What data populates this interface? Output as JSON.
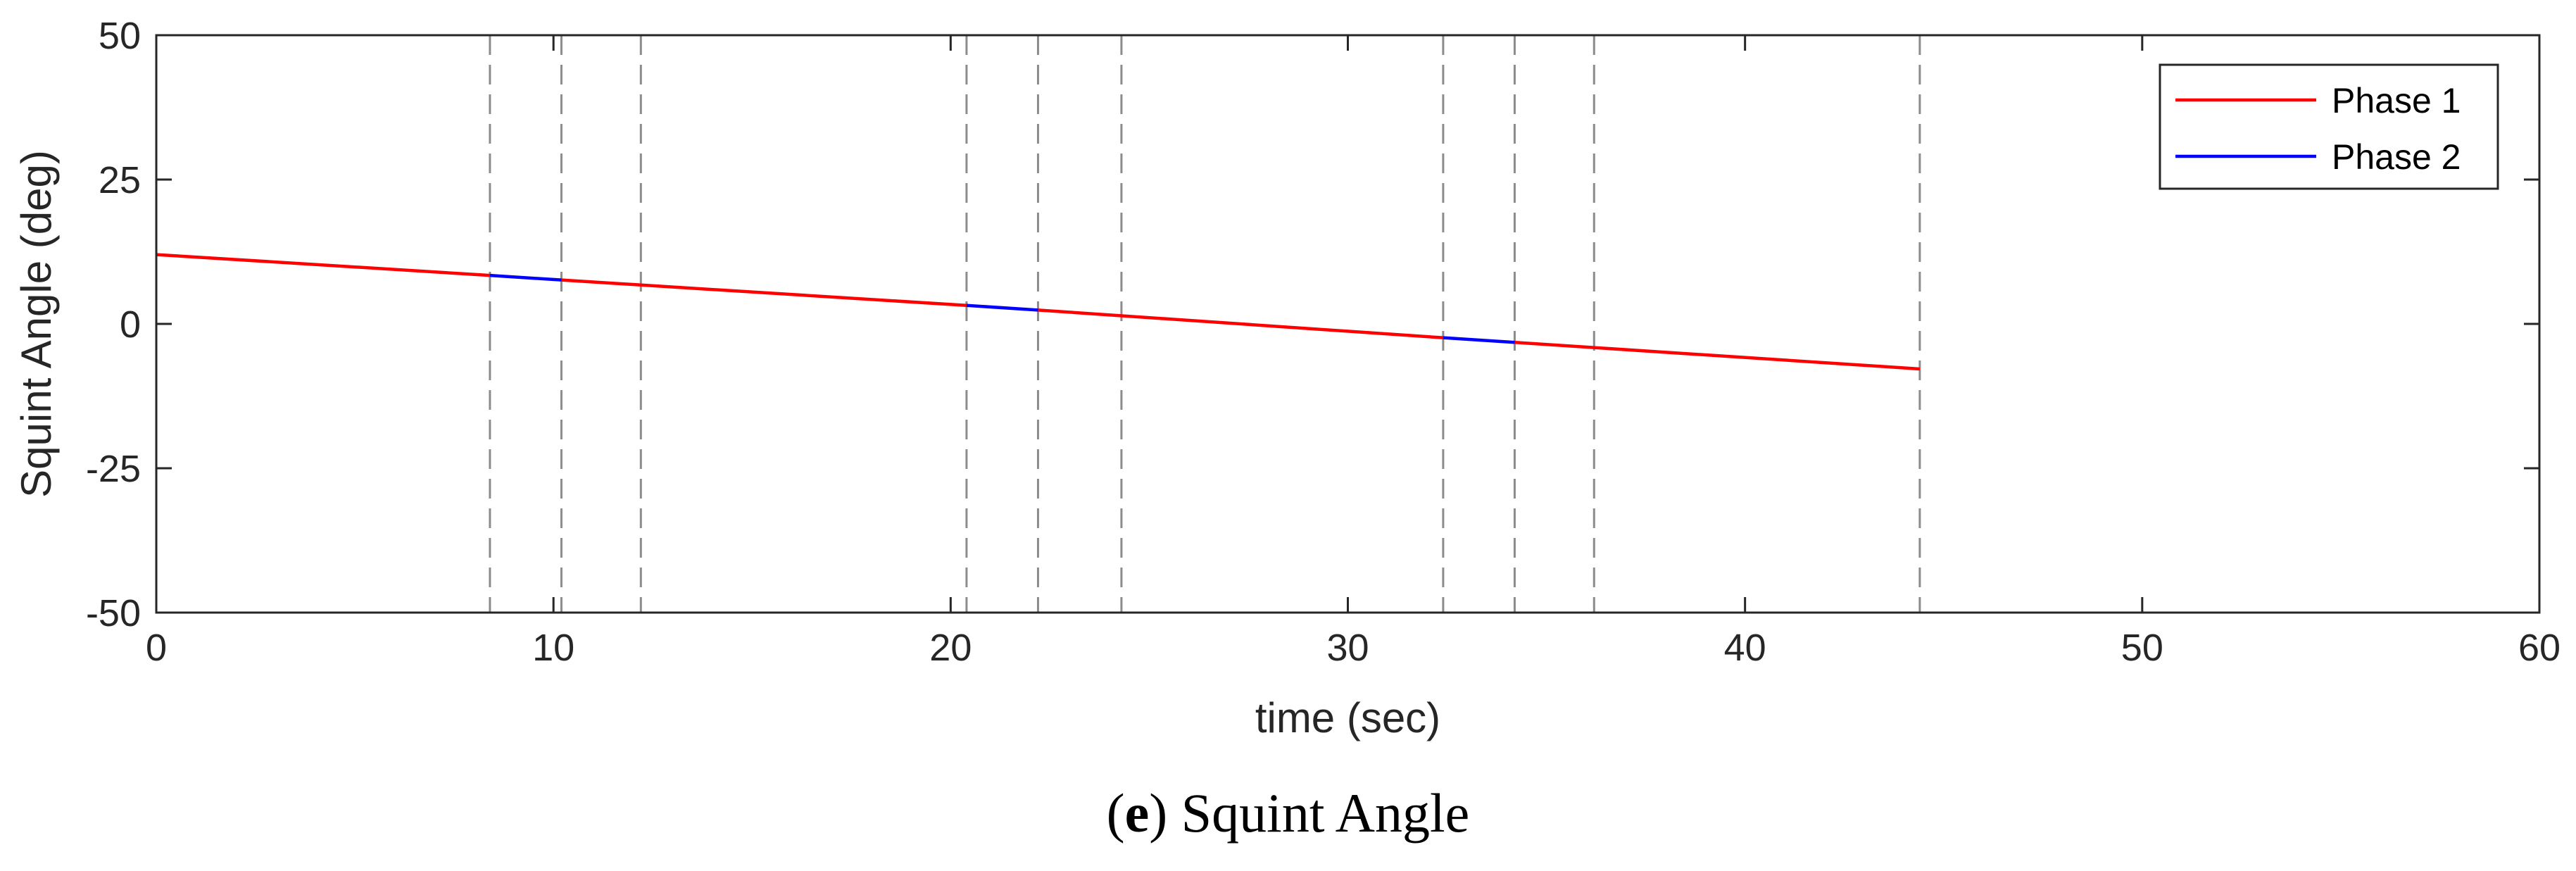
{
  "chart_data": {
    "type": "line",
    "xlabel": "time (sec)",
    "ylabel": "Squint Angle (deg)",
    "xlim": [
      0,
      60
    ],
    "ylim": [
      -50,
      50
    ],
    "xticks": [
      0,
      10,
      20,
      30,
      40,
      50,
      60
    ],
    "xtick_labels": [
      "0",
      "10",
      "20",
      "30",
      "40",
      "50",
      "60"
    ],
    "yticks": [
      50,
      25,
      0,
      -25,
      -50
    ],
    "ytick_labels": [
      "50",
      "25",
      "0",
      "-25",
      "-50"
    ],
    "grid": false,
    "legend_position": "top-right",
    "vertical_markers": [
      8.4,
      10.2,
      12.2,
      20.4,
      22.2,
      24.3,
      32.4,
      34.2,
      36.2,
      44.4
    ],
    "series": [
      {
        "name": "Phase 1",
        "color": "#ff0000",
        "segments": [
          [
            [
              0,
              12.0
            ],
            [
              8.4,
              8.4
            ]
          ],
          [
            [
              10.2,
              7.6
            ],
            [
              20.4,
              3.2
            ]
          ],
          [
            [
              22.2,
              2.4
            ],
            [
              32.4,
              -2.4
            ]
          ],
          [
            [
              34.2,
              -3.2
            ],
            [
              44.4,
              -7.8
            ]
          ]
        ]
      },
      {
        "name": "Phase 2",
        "color": "#0000ff",
        "segments": [
          [
            [
              8.4,
              8.4
            ],
            [
              10.2,
              7.6
            ]
          ],
          [
            [
              20.4,
              3.2
            ],
            [
              22.2,
              2.4
            ]
          ],
          [
            [
              32.4,
              -2.4
            ],
            [
              34.2,
              -3.2
            ]
          ]
        ]
      }
    ]
  },
  "caption": {
    "letter": "e",
    "text": " Squint Angle"
  }
}
